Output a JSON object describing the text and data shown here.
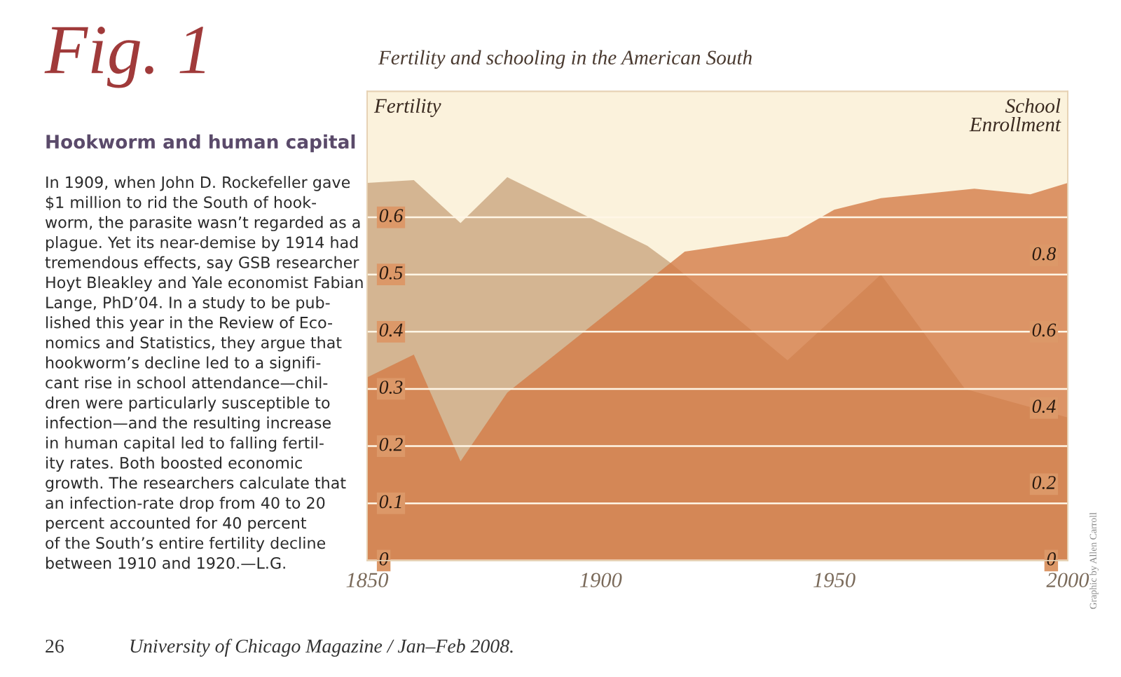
{
  "chart_data": {
    "type": "area",
    "title": "Fertility and schooling in the American South",
    "ylabel": "Fertility",
    "y2label": "School\nEnrollment",
    "series": [
      {
        "color": "#c9a47e",
        "x": [
          1850,
          1860,
          1870,
          1880,
          1910,
          1915,
          1940,
          1960,
          1978,
          2000
        ],
        "values": [
          0.66,
          0.665,
          0.59,
          0.67,
          0.55,
          0.52,
          0.35,
          0.5,
          0.3,
          0.25
        ]
      },
      {
        "color": "#d47a45",
        "axis": "y2",
        "x": [
          1850,
          1860,
          1870,
          1880,
          1918,
          1940,
          1950,
          1960,
          1980,
          1992,
          2000
        ],
        "values": [
          0.48,
          0.54,
          0.26,
          0.44,
          0.81,
          0.85,
          0.92,
          0.95,
          0.975,
          0.96,
          0.99
        ]
      }
    ],
    "xlim": [
      1850,
      2000
    ],
    "xticks": [
      1850,
      1900,
      1950,
      2000
    ],
    "ylim": [
      0,
      0.82
    ],
    "yticks": [
      0,
      0.1,
      0.2,
      0.3,
      0.4,
      0.5,
      0.6
    ],
    "y2lim": [
      0,
      1.23
    ],
    "y2ticks": [
      0,
      0.2,
      0.4,
      0.6,
      0.8
    ],
    "grid": "y",
    "annotations": [
      "Fig. 1",
      "Hookworm and human capital",
      "In 1909, when John D. Rockefeller gave\n$1 million to rid the South of hook-\nworm, the parasite wasn’t regarded as a\nplague. Yet its near-demise by 1914 had\ntremendous effects, say GSB researcher\nHoyt Bleakley and Yale economist Fabian\nLange, PhD’04. In a study to be pub-\nlished this year in the Review of Eco-\nnomics and Statistics, they argue that\nhookworm’s decline led to a signifi-\ncant rise in school attendance—chil-\ndren were particularly susceptible to\ninfection—and the resulting increase\nin human capital led to falling fertil-\nity rates. Both boosted economic\ngrowth. The researchers calculate that\nan infection-rate drop from 40 to 20\npercent accounted for 40 percent\nof the South’s entire fertility decline\nbetween 1910 and 1920.—L.G.",
      "26",
      "University of Chicago Magazine / Jan–Feb 2008.",
      "Graphic by Allen Carroll"
    ]
  }
}
